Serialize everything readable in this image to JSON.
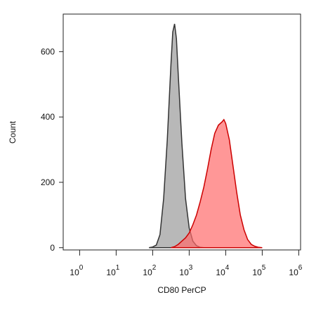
{
  "chart_data": {
    "type": "area",
    "x_label": "CD80 PerCP",
    "y_label": "Count",
    "x_tick_base": "10",
    "xlim": [
      -0.45,
      6.05
    ],
    "xticks": [
      0,
      1,
      2,
      3,
      4,
      5,
      6
    ],
    "ylim": [
      -7,
      715
    ],
    "yticks": [
      0,
      200,
      400,
      600
    ],
    "series": [
      {
        "color": "#9a9a9a",
        "stroke": "#333333",
        "x": [
          1.9,
          2.0,
          2.1,
          2.2,
          2.3,
          2.4,
          2.5,
          2.55,
          2.6,
          2.65,
          2.7,
          2.8,
          2.9,
          3.0,
          3.1,
          3.2,
          3.3,
          3.4
        ],
        "values": [
          0,
          2,
          8,
          40,
          150,
          330,
          560,
          660,
          685,
          640,
          530,
          320,
          150,
          60,
          20,
          6,
          1,
          0
        ]
      },
      {
        "color": "#ff6b6b",
        "stroke": "#cc0000",
        "x": [
          2.5,
          2.6,
          2.7,
          2.8,
          2.9,
          3.0,
          3.1,
          3.2,
          3.3,
          3.4,
          3.5,
          3.6,
          3.7,
          3.8,
          3.9,
          3.95,
          4.0,
          4.1,
          4.2,
          4.3,
          4.4,
          4.5,
          4.6,
          4.7,
          4.8,
          4.9,
          5.0
        ],
        "values": [
          0,
          3,
          10,
          20,
          30,
          45,
          70,
          100,
          140,
          185,
          240,
          300,
          350,
          375,
          385,
          392,
          380,
          330,
          250,
          170,
          100,
          55,
          25,
          10,
          4,
          1,
          0
        ]
      }
    ]
  }
}
